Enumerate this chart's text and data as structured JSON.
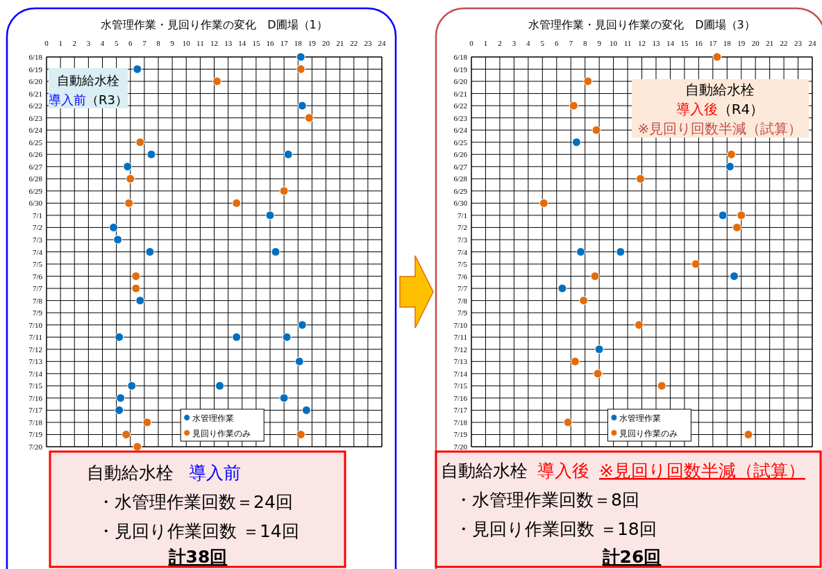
{
  "chart_data": [
    {
      "type": "scatter",
      "orientation": "horizontal",
      "title": "水管理作業・見回り作業の変化　D圃場（1）",
      "categories": [
        "6/18",
        "6/19",
        "6/20",
        "6/21",
        "6/22",
        "6/23",
        "6/24",
        "6/25",
        "6/26",
        "6/27",
        "6/28",
        "6/29",
        "6/30",
        "7/1",
        "7/2",
        "7/3",
        "7/4",
        "7/5",
        "7/6",
        "7/7",
        "7/8",
        "7/9",
        "7/10",
        "7/11",
        "7/12",
        "7/13",
        "7/14",
        "7/15",
        "7/16",
        "7/17",
        "7/18",
        "7/19",
        "7/20"
      ],
      "series": [
        {
          "name": "水管理作業",
          "color": "#0070c0",
          "values": [
            18.2,
            6.5,
            null,
            null,
            18.3,
            null,
            null,
            null,
            7.5,
            5.8,
            null,
            null,
            null,
            16.0,
            4.8,
            5.1,
            7.4,
            null,
            null,
            null,
            6.7,
            null,
            18.3,
            5.2,
            null,
            18.1,
            null,
            6.1,
            5.3,
            5.2,
            null,
            null,
            null
          ]
        },
        {
          "color": "#0070c0",
          "values": [
            null,
            null,
            null,
            null,
            null,
            null,
            null,
            null,
            17.3,
            null,
            null,
            null,
            null,
            null,
            null,
            null,
            16.4,
            null,
            null,
            null,
            null,
            null,
            null,
            13.6,
            null,
            null,
            null,
            12.4,
            17.0,
            18.6,
            null,
            null,
            null
          ]
        },
        {
          "color": "#0070c0",
          "values": [
            null,
            null,
            null,
            null,
            null,
            null,
            null,
            null,
            null,
            null,
            null,
            null,
            null,
            null,
            null,
            null,
            null,
            null,
            null,
            null,
            null,
            null,
            null,
            17.2,
            null,
            null,
            null,
            null,
            null,
            null,
            null,
            null,
            null
          ]
        },
        {
          "name": "見回り作業のみ",
          "color": "#e46c0a",
          "values": [
            null,
            18.2,
            12.2,
            null,
            null,
            18.8,
            null,
            6.7,
            null,
            null,
            6.0,
            17.0,
            5.9,
            null,
            null,
            null,
            null,
            null,
            6.4,
            6.4,
            null,
            null,
            null,
            null,
            null,
            null,
            null,
            null,
            null,
            null,
            7.2,
            5.7,
            6.5
          ]
        },
        {
          "color": "#e46c0a",
          "values": [
            null,
            null,
            null,
            null,
            null,
            null,
            null,
            null,
            null,
            null,
            null,
            null,
            13.6,
            null,
            null,
            null,
            null,
            null,
            null,
            null,
            null,
            null,
            null,
            null,
            null,
            null,
            null,
            null,
            null,
            null,
            null,
            18.2,
            null
          ]
        }
      ],
      "xlim": [
        0,
        24
      ],
      "xticks": [
        0,
        1,
        2,
        3,
        4,
        5,
        6,
        7,
        8,
        9,
        10,
        11,
        12,
        13,
        14,
        15,
        16,
        17,
        18,
        19,
        20,
        21,
        22,
        23,
        24
      ],
      "grid": true,
      "legend": "bottom",
      "marker": "circle",
      "annotations": [
        "自動給水栓",
        "導入前",
        "（R3）",
        "自動給水栓",
        "導入前",
        "・水管理作業回数＝24回",
        "・見回り作業回数 ＝14回",
        "計38回"
      ]
    },
    {
      "type": "scatter",
      "orientation": "horizontal",
      "title": "水管理作業・見回り作業の変化　D圃場（3）",
      "categories": [
        "6/18",
        "6/19",
        "6/20",
        "6/21",
        "6/22",
        "6/23",
        "6/24",
        "6/25",
        "6/26",
        "6/27",
        "6/28",
        "6/29",
        "6/30",
        "7/1",
        "7/2",
        "7/3",
        "7/4",
        "7/5",
        "7/6",
        "7/7",
        "7/8",
        "7/9",
        "7/10",
        "7/11",
        "7/12",
        "7/13",
        "7/14",
        "7/15",
        "7/16",
        "7/17",
        "7/18",
        "7/19",
        "7/20"
      ],
      "series": [
        {
          "name": "水管理作業",
          "color": "#0070c0",
          "values": [
            null,
            null,
            null,
            null,
            null,
            null,
            null,
            7.4,
            null,
            18.2,
            null,
            null,
            null,
            17.7,
            null,
            null,
            7.7,
            null,
            18.5,
            6.4,
            null,
            null,
            null,
            null,
            9.0,
            null,
            null,
            null,
            null,
            null,
            null,
            null,
            null
          ]
        },
        {
          "color": "#0070c0",
          "values": [
            null,
            null,
            null,
            null,
            null,
            null,
            null,
            null,
            null,
            null,
            null,
            null,
            null,
            null,
            null,
            null,
            10.5,
            null,
            null,
            null,
            null,
            null,
            null,
            null,
            null,
            null,
            null,
            null,
            null,
            null,
            null,
            null,
            null
          ]
        },
        {
          "name": "見回り作業のみ",
          "color": "#e46c0a",
          "values": [
            17.3,
            null,
            8.2,
            null,
            7.2,
            null,
            8.8,
            null,
            18.3,
            null,
            11.9,
            null,
            5.1,
            19.0,
            18.7,
            null,
            null,
            15.8,
            8.7,
            null,
            7.9,
            null,
            11.8,
            null,
            null,
            7.3,
            8.9,
            13.4,
            null,
            null,
            6.8,
            19.5,
            null
          ]
        }
      ],
      "xlim": [
        0,
        24
      ],
      "xticks": [
        0,
        1,
        2,
        3,
        4,
        5,
        6,
        7,
        8,
        9,
        10,
        11,
        12,
        13,
        14,
        15,
        16,
        17,
        18,
        19,
        20,
        21,
        22,
        23,
        24
      ],
      "grid": true,
      "legend": "bottom",
      "marker": "circle",
      "annotations": [
        "自動給水栓",
        "導入後",
        "（R4）",
        "※見回り回数半減（試算）",
        "自動給水栓",
        "導入後",
        "※見回り回数半減（試算）",
        "・水管理作業回数＝8回",
        "・見回り作業回数 ＝18回",
        "計26回"
      ]
    }
  ]
}
